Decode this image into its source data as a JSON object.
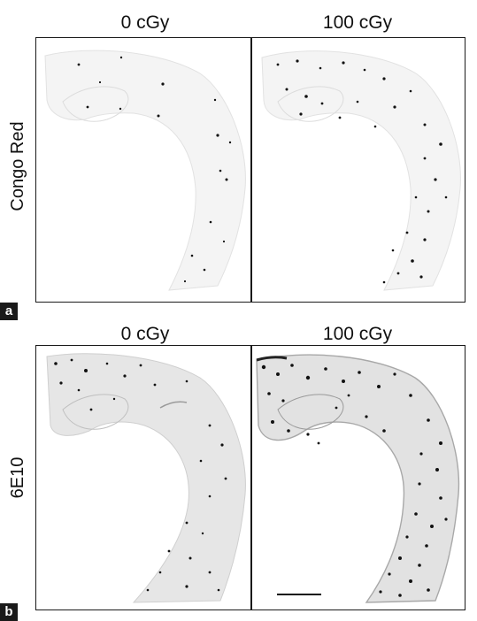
{
  "panel_a": {
    "label": "a",
    "row_label": "Congo Red",
    "col_titles": [
      "0 cGy",
      "100 cGy"
    ]
  },
  "panel_b": {
    "label": "b",
    "row_label": "6E10",
    "col_titles": [
      "0 cGy",
      "100 cGy"
    ]
  },
  "colors": {
    "frame": "#1a1a1a",
    "tissue_light": "#f3f3f3",
    "tissue_dark": "#e3e3e3",
    "plaque": "#111111"
  }
}
